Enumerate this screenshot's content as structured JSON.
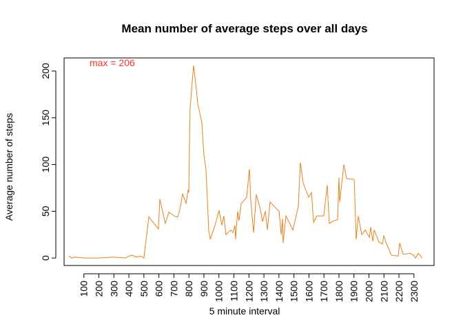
{
  "chart_data": {
    "type": "line",
    "title": "Mean number of average steps over all days",
    "x_label": "5 minute interval",
    "y_label": "Average number of steps",
    "annotation": "max =  206",
    "annotation_color": "#ff3030",
    "x": [
      0,
      20,
      40,
      100,
      200,
      300,
      380,
      400,
      420,
      450,
      480,
      500,
      533,
      597,
      606,
      643,
      666,
      712,
      726,
      744,
      758,
      781,
      795,
      799,
      808,
      813,
      831,
      850,
      859,
      886,
      900,
      914,
      932,
      942,
      974,
      1001,
      1020,
      1033,
      1047,
      1079,
      1093,
      1107,
      1111,
      1125,
      1134,
      1148,
      1185,
      1203,
      1213,
      1231,
      1249,
      1272,
      1291,
      1309,
      1323,
      1341,
      1369,
      1401,
      1415,
      1424,
      1428,
      1447,
      1493,
      1529,
      1543,
      1562,
      1598,
      1617,
      1631,
      1653,
      1699,
      1722,
      1736,
      1768,
      1791,
      1800,
      1805,
      1833,
      1851,
      1902,
      1915,
      1929,
      1952,
      1975,
      2003,
      2012,
      2026,
      2035,
      2067,
      2090,
      2099,
      2113,
      2150,
      2195,
      2205,
      2228,
      2274,
      2297,
      2310,
      2329,
      2355
    ],
    "series": [
      {
        "color": "#e8801a",
        "values": [
          2,
          0,
          1,
          0,
          0,
          1,
          0,
          2,
          3,
          1,
          2,
          0,
          44,
          31,
          63,
          37,
          49,
          44,
          44,
          55,
          69,
          58,
          73,
          70,
          160,
          170,
          206,
          180,
          165,
          145,
          110,
          95,
          30,
          20,
          35,
          51,
          35,
          45,
          25,
          30,
          27,
          35,
          20,
          50,
          40,
          58,
          65,
          95,
          60,
          27,
          68,
          55,
          39,
          50,
          30,
          60,
          55,
          50,
          25,
          42,
          16,
          45,
          30,
          55,
          102,
          80,
          65,
          70,
          38,
          45,
          45,
          78,
          37,
          40,
          41,
          86,
          60,
          100,
          85,
          84,
          20,
          45,
          25,
          30,
          22,
          33,
          18,
          30,
          17,
          15,
          24,
          17,
          3,
          2,
          16,
          4,
          5,
          3,
          0,
          5,
          0
        ]
      }
    ],
    "xlim": [
      -32,
      2434
    ],
    "ylim": [
      -8,
      214
    ],
    "xticks": [
      100,
      200,
      300,
      400,
      500,
      600,
      700,
      800,
      900,
      1000,
      1100,
      1200,
      1300,
      1400,
      1500,
      1600,
      1700,
      1800,
      1900,
      2000,
      2100,
      2200,
      2300
    ],
    "yticks": [
      0,
      50,
      100,
      150,
      200
    ]
  }
}
